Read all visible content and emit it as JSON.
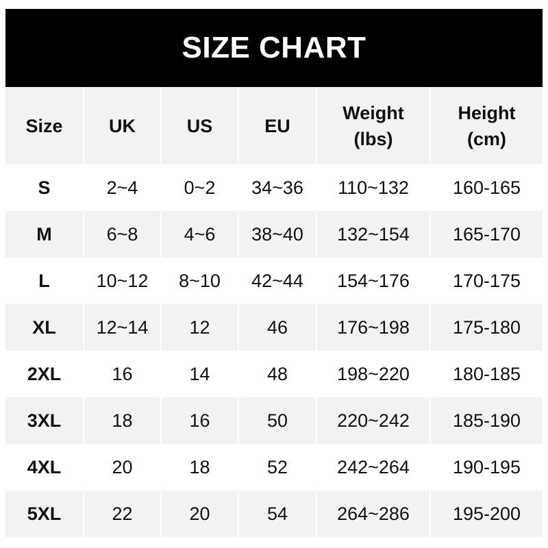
{
  "title": "SIZE CHART",
  "columns": [
    {
      "line1": "Size",
      "line2": ""
    },
    {
      "line1": "UK",
      "line2": ""
    },
    {
      "line1": "US",
      "line2": ""
    },
    {
      "line1": "EU",
      "line2": ""
    },
    {
      "line1": "Weight",
      "line2": "(lbs)"
    },
    {
      "line1": "Height",
      "line2": "(cm)"
    }
  ],
  "rows": [
    [
      "S",
      "2~4",
      "0~2",
      "34~36",
      "110~132",
      "160-165"
    ],
    [
      "M",
      "6~8",
      "4~6",
      "38~40",
      "132~154",
      "165-170"
    ],
    [
      "L",
      "10~12",
      "8~10",
      "42~44",
      "154~176",
      "170-175"
    ],
    [
      "XL",
      "12~14",
      "12",
      "46",
      "176~198",
      "175-180"
    ],
    [
      "2XL",
      "16",
      "14",
      "48",
      "198~220",
      "180-185"
    ],
    [
      "3XL",
      "18",
      "16",
      "50",
      "220~242",
      "185-190"
    ],
    [
      "4XL",
      "20",
      "18",
      "52",
      "242~264",
      "190-195"
    ],
    [
      "5XL",
      "22",
      "20",
      "54",
      "264~286",
      "195-200"
    ]
  ],
  "colors": {
    "header_bg": "#000000",
    "stripe": "#f2f2f2"
  }
}
